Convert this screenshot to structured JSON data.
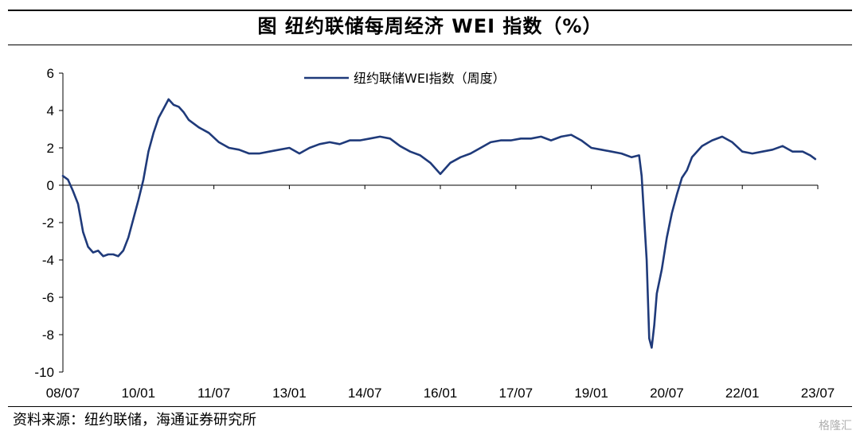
{
  "header": {
    "title": "图 纽约联储每周经济 WEI 指数（%）"
  },
  "footer": {
    "source": "资料来源：纽约联储，海通证券研究所",
    "watermark": "格隆汇"
  },
  "chart_data": {
    "type": "line",
    "title": "图 纽约联储每周经济 WEI 指数（%）",
    "xlabel": "",
    "ylabel": "",
    "ylim": [
      -10,
      6
    ],
    "yticks": [
      6,
      4,
      2,
      0,
      -2,
      -4,
      -6,
      -8,
      -10
    ],
    "xlim": [
      2008.5,
      2023.5
    ],
    "xtick_labels": [
      "08/07",
      "10/01",
      "11/07",
      "13/01",
      "14/07",
      "16/01",
      "17/07",
      "19/01",
      "20/07",
      "22/01",
      "23/07"
    ],
    "xtick_values": [
      2008.5,
      2010.0,
      2011.5,
      2013.0,
      2014.5,
      2016.0,
      2017.5,
      2019.0,
      2020.5,
      2022.0,
      2023.5
    ],
    "legend": {
      "position": "top-center",
      "entries": [
        "纽约联储WEI指数（周度）"
      ]
    },
    "grid": false,
    "color": "#1f3a7a",
    "series": [
      {
        "name": "纽约联储WEI指数（周度）",
        "x": [
          2008.5,
          2008.6,
          2008.7,
          2008.8,
          2008.9,
          2009.0,
          2009.1,
          2009.2,
          2009.3,
          2009.4,
          2009.5,
          2009.6,
          2009.7,
          2009.8,
          2009.9,
          2010.0,
          2010.1,
          2010.2,
          2010.3,
          2010.4,
          2010.5,
          2010.6,
          2010.7,
          2010.8,
          2010.9,
          2011.0,
          2011.2,
          2011.4,
          2011.6,
          2011.8,
          2012.0,
          2012.2,
          2012.4,
          2012.6,
          2012.8,
          2013.0,
          2013.2,
          2013.4,
          2013.6,
          2013.8,
          2014.0,
          2014.2,
          2014.4,
          2014.6,
          2014.8,
          2015.0,
          2015.2,
          2015.4,
          2015.6,
          2015.8,
          2016.0,
          2016.2,
          2016.4,
          2016.6,
          2016.8,
          2017.0,
          2017.2,
          2017.4,
          2017.6,
          2017.8,
          2018.0,
          2018.2,
          2018.4,
          2018.6,
          2018.8,
          2019.0,
          2019.2,
          2019.4,
          2019.6,
          2019.8,
          2019.95,
          2020.0,
          2020.1,
          2020.15,
          2020.2,
          2020.25,
          2020.3,
          2020.4,
          2020.5,
          2020.6,
          2020.7,
          2020.8,
          2020.9,
          2021.0,
          2021.2,
          2021.4,
          2021.6,
          2021.8,
          2022.0,
          2022.2,
          2022.4,
          2022.6,
          2022.8,
          2023.0,
          2023.2,
          2023.35,
          2023.45
        ],
        "y": [
          0.5,
          0.3,
          -0.3,
          -1.0,
          -2.5,
          -3.3,
          -3.6,
          -3.5,
          -3.8,
          -3.7,
          -3.7,
          -3.8,
          -3.5,
          -2.8,
          -1.8,
          -0.8,
          0.3,
          1.8,
          2.8,
          3.6,
          4.1,
          4.6,
          4.3,
          4.2,
          3.9,
          3.5,
          3.1,
          2.8,
          2.3,
          2.0,
          1.9,
          1.7,
          1.7,
          1.8,
          1.9,
          2.0,
          1.7,
          2.0,
          2.2,
          2.3,
          2.2,
          2.4,
          2.4,
          2.5,
          2.6,
          2.5,
          2.1,
          1.8,
          1.6,
          1.2,
          0.6,
          1.2,
          1.5,
          1.7,
          2.0,
          2.3,
          2.4,
          2.4,
          2.5,
          2.5,
          2.6,
          2.4,
          2.6,
          2.7,
          2.4,
          2.0,
          1.9,
          1.8,
          1.7,
          1.5,
          1.6,
          0.5,
          -4.0,
          -8.2,
          -8.7,
          -7.5,
          -5.8,
          -4.5,
          -2.8,
          -1.5,
          -0.5,
          0.4,
          0.8,
          1.5,
          2.1,
          2.4,
          2.6,
          2.3,
          1.8,
          1.7,
          1.8,
          1.9,
          2.1,
          1.8,
          1.8,
          1.6,
          1.4
        ]
      }
    ]
  }
}
